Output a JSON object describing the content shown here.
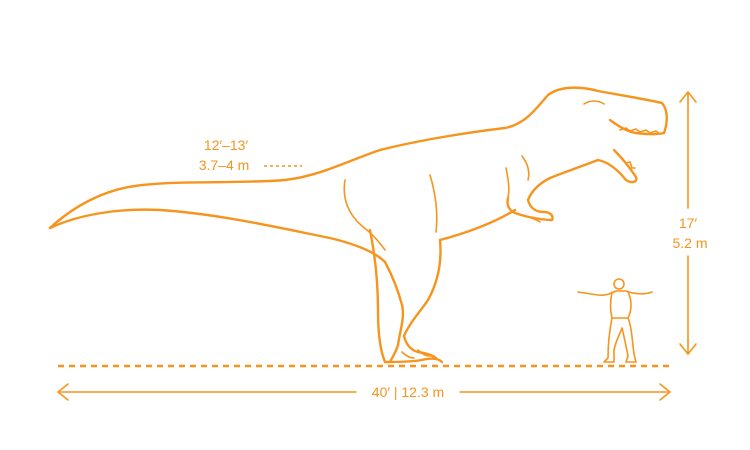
{
  "colors": {
    "accent": "#F7941D",
    "background": "#FFFFFF"
  },
  "annotations": {
    "hip_height_ft": "12′–13′",
    "hip_height_m": "3.7–4 m",
    "total_height_ft": "17′",
    "total_height_m": "5.2 m",
    "length": "40′ | 12.3 m"
  },
  "figures": [
    {
      "icon": "tyrannosaurus-icon"
    },
    {
      "icon": "human-figure-icon"
    }
  ]
}
